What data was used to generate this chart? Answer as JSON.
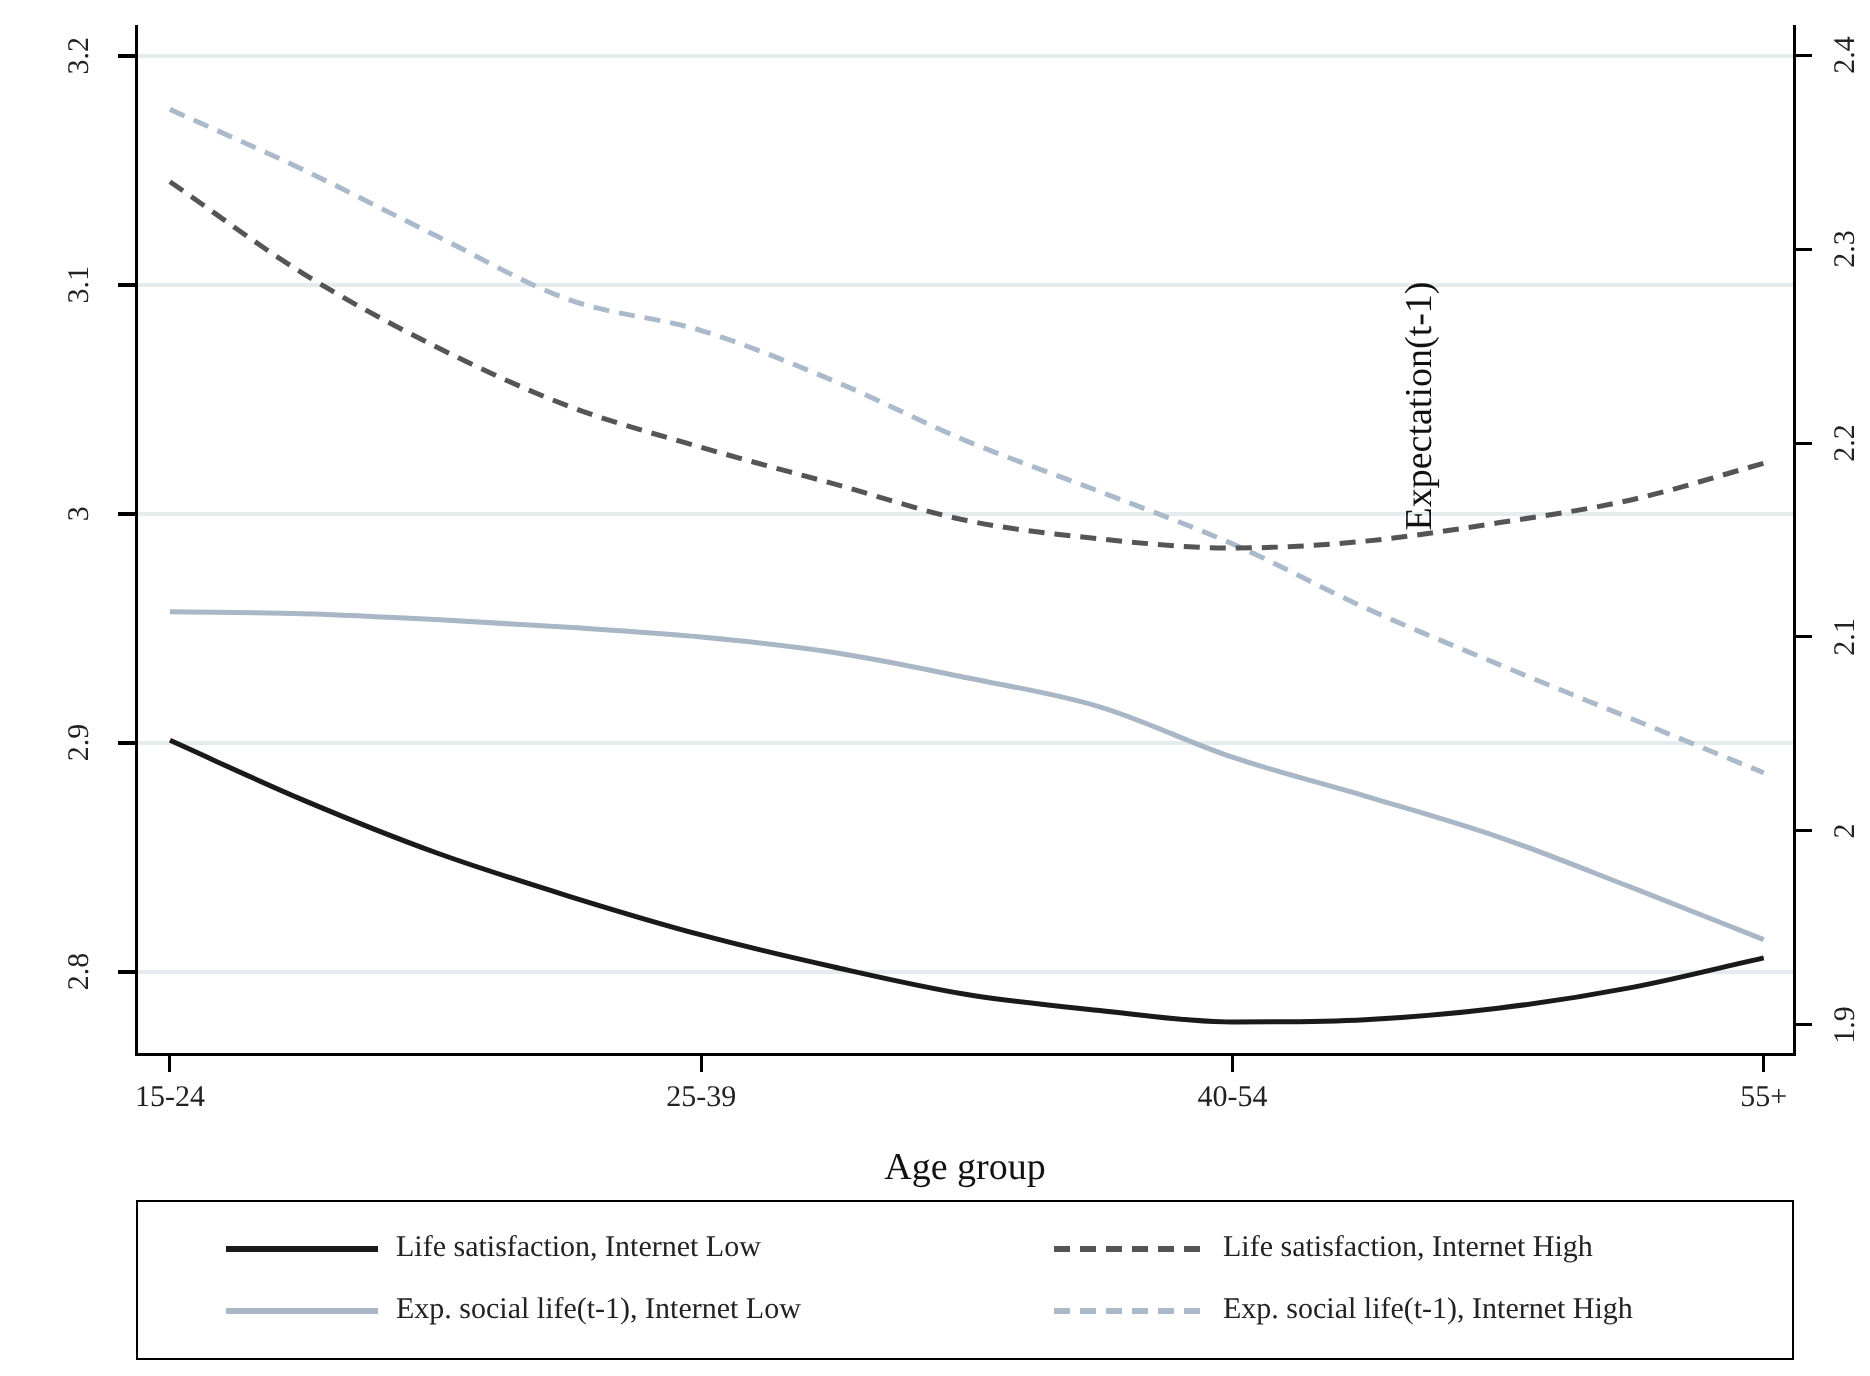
{
  "chart_data": {
    "type": "line",
    "xlabel": "Age group",
    "y2label": "Expectation(t-1)",
    "categories": [
      "15-24",
      null,
      null,
      null,
      "25-39",
      null,
      null,
      null,
      "40-54",
      null,
      null,
      null,
      "55+"
    ],
    "ylim": [
      2.764,
      3.213
    ],
    "yticks": [
      2.8,
      2.9,
      3,
      3.1,
      3.2
    ],
    "y2lim": [
      1.885,
      2.415
    ],
    "y2ticks": [
      1.9,
      2,
      2.1,
      2.2,
      2.3,
      2.4
    ],
    "grid": "y",
    "legend": "bottom",
    "marker": "none",
    "series": [
      {
        "name": "Life satisfaction, Internet Low",
        "color": "#1a1a1a",
        "line_style": "solid",
        "values": [
          2.901,
          2.875,
          2.852,
          2.833,
          2.816,
          2.802,
          2.79,
          2.783,
          2.778,
          2.779,
          2.784,
          2.793,
          2.806
        ]
      },
      {
        "name": "Life satisfaction, Internet High",
        "color": "#555555",
        "line_style": "dashed",
        "values": [
          3.145,
          3.105,
          3.073,
          3.047,
          3.029,
          3.013,
          2.997,
          2.989,
          2.985,
          2.988,
          2.996,
          3.006,
          3.022
        ]
      },
      {
        "name": "Exp. social life(t-1), Internet Low",
        "color": "#a9b6c6",
        "line_style": "solid",
        "axis": "y2",
        "values": [
          2.113,
          2.112,
          2.109,
          2.105,
          2.1,
          2.092,
          2.079,
          2.064,
          2.038,
          2.018,
          1.997,
          1.971,
          1.944
        ]
      },
      {
        "name": "Exp. social life(t-1), Internet High",
        "color": "#abbacb",
        "line_style": "dashed",
        "axis": "y2",
        "values": [
          2.372,
          2.341,
          2.307,
          2.274,
          2.258,
          2.232,
          2.201,
          2.175,
          2.148,
          2.115,
          2.086,
          2.058,
          2.03
        ]
      }
    ]
  }
}
